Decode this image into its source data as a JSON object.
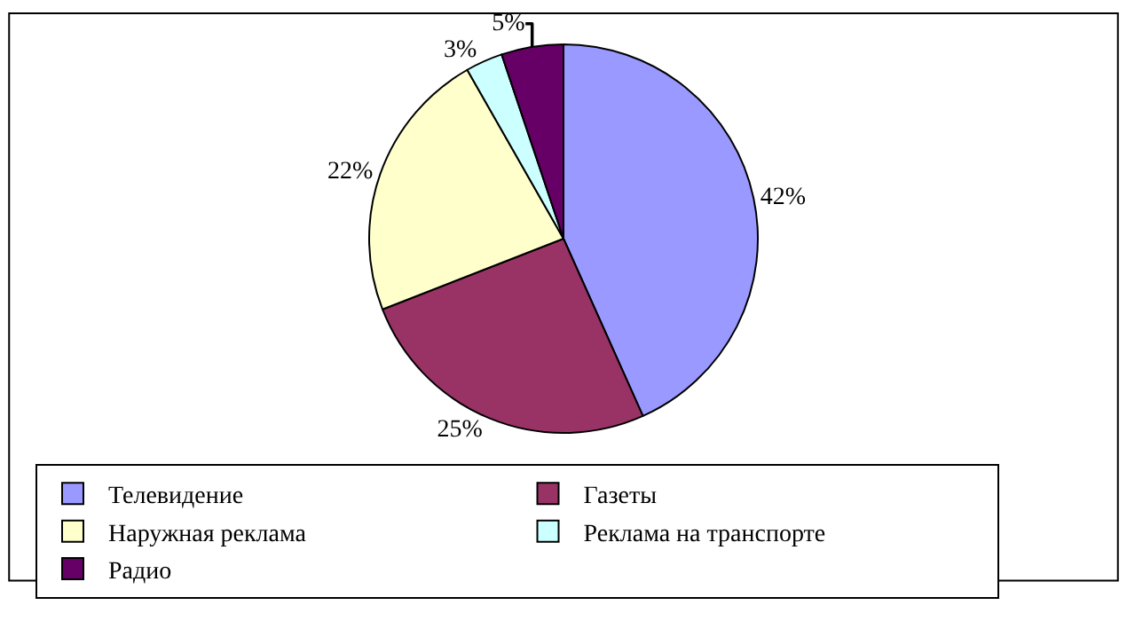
{
  "chart_data": {
    "type": "pie",
    "categories": [
      "Телевидение",
      "Газеты",
      "Наружная реклама",
      "Реклама на транспорте",
      "Радио"
    ],
    "values": [
      42,
      25,
      22,
      3,
      5
    ],
    "value_labels": [
      "42%",
      "25%",
      "22%",
      "3%",
      "5%"
    ],
    "colors": [
      "#9999ff",
      "#993366",
      "#ffffcc",
      "#ccffff",
      "#660066"
    ],
    "legend": "bottom"
  }
}
